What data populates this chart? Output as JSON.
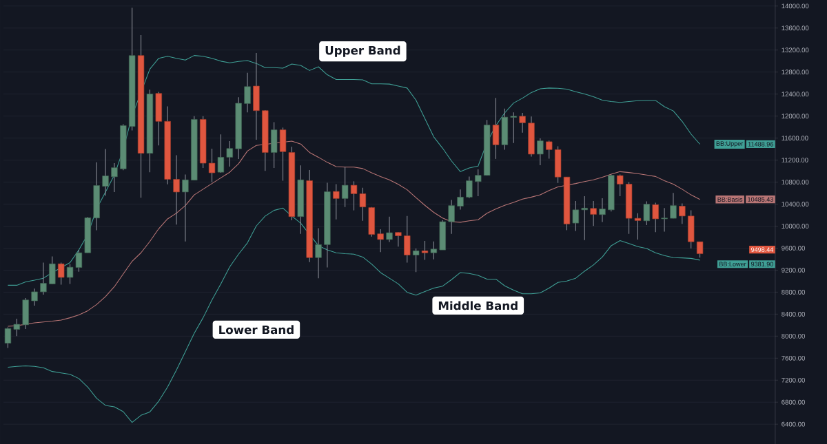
{
  "chart_data": {
    "type": "candlestick",
    "categories": [
      null,
      null,
      null,
      null,
      null,
      null,
      null,
      null,
      null,
      null,
      null,
      null,
      null,
      null,
      null,
      null,
      null,
      null,
      null,
      null,
      null,
      null,
      null,
      null,
      null,
      null,
      null,
      null,
      null,
      null,
      null,
      null,
      null,
      null,
      null,
      null,
      null,
      null,
      null,
      null,
      null,
      null,
      null,
      null,
      null,
      null,
      null,
      null,
      null,
      null,
      null,
      null,
      null,
      null,
      null,
      null,
      null,
      null,
      null,
      null,
      null,
      null,
      null,
      null,
      null,
      null,
      null,
      null,
      null,
      null,
      null,
      null,
      null,
      null,
      null,
      null,
      null,
      null,
      null
    ],
    "ohlc": [
      [
        7872,
        8160,
        7784,
        8139
      ],
      [
        8123,
        8318,
        8000,
        8216
      ],
      [
        8206,
        8693,
        8128,
        8658
      ],
      [
        8642,
        8863,
        8555,
        8806
      ],
      [
        8806,
        9336,
        8755,
        8961
      ],
      [
        8950,
        9449,
        8950,
        9315
      ],
      [
        9315,
        9336,
        8935,
        9068
      ],
      [
        9068,
        9310,
        8950,
        9253
      ],
      [
        9248,
        9567,
        9171,
        9515
      ],
      [
        9515,
        10167,
        9515,
        10152
      ],
      [
        10147,
        11159,
        9926,
        10738
      ],
      [
        10723,
        11401,
        10553,
        10913
      ],
      [
        10897,
        11144,
        10620,
        11062
      ],
      [
        11041,
        11853,
        11015,
        11827
      ],
      [
        11812,
        13969,
        11740,
        13101
      ],
      [
        13101,
        13471,
        10517,
        11324
      ],
      [
        11324,
        12479,
        10979,
        12402
      ],
      [
        12412,
        12438,
        11467,
        11904
      ],
      [
        11904,
        12176,
        10759,
        10851
      ],
      [
        10851,
        11288,
        10029,
        10620
      ],
      [
        10620,
        10938,
        9721,
        10841
      ],
      [
        10836,
        11997,
        10836,
        11940
      ],
      [
        11940,
        11997,
        11057,
        11144
      ],
      [
        11144,
        11406,
        10800,
        10969
      ],
      [
        10980,
        11668,
        10969,
        11252
      ],
      [
        11252,
        11544,
        11082,
        11411
      ],
      [
        11406,
        12341,
        11221,
        12233
      ],
      [
        12228,
        12788,
        12068,
        12536
      ],
      [
        12546,
        13147,
        11570,
        12099
      ],
      [
        12099,
        12109,
        11005,
        11339
      ],
      [
        11339,
        11889,
        11057,
        11750
      ],
      [
        11750,
        11791,
        10825,
        11354
      ],
      [
        11339,
        11442,
        10106,
        10173
      ],
      [
        10173,
        11103,
        9860,
        10841
      ],
      [
        10826,
        11021,
        9346,
        9428
      ],
      [
        9428,
        9962,
        9053,
        9664
      ],
      [
        9664,
        10789,
        9248,
        10625
      ],
      [
        10630,
        10764,
        10122,
        10502
      ],
      [
        10502,
        11072,
        10348,
        10743
      ],
      [
        10743,
        10815,
        10286,
        10589
      ],
      [
        10589,
        10697,
        10096,
        10348
      ],
      [
        10337,
        10348,
        9808,
        9849
      ],
      [
        9860,
        9942,
        9526,
        9757
      ],
      [
        9757,
        10173,
        9711,
        9880
      ],
      [
        9885,
        9890,
        9628,
        9824
      ],
      [
        9824,
        10183,
        9336,
        9474
      ],
      [
        9474,
        9592,
        9166,
        9551
      ],
      [
        9551,
        9731,
        9387,
        9515
      ],
      [
        9515,
        9721,
        9397,
        9582
      ],
      [
        9567,
        10106,
        9567,
        10080
      ],
      [
        10080,
        10476,
        9860,
        10373
      ],
      [
        10363,
        10666,
        10301,
        10527
      ],
      [
        10527,
        10902,
        10507,
        10825
      ],
      [
        10810,
        11031,
        10543,
        10923
      ],
      [
        10923,
        11930,
        10923,
        11837
      ],
      [
        11837,
        12330,
        11221,
        11478
      ],
      [
        11478,
        12135,
        11390,
        11981
      ],
      [
        11976,
        12068,
        11509,
        11997
      ],
      [
        11997,
        12058,
        11699,
        11878
      ],
      [
        11873,
        11991,
        11262,
        11308
      ],
      [
        11308,
        11596,
        11108,
        11550
      ],
      [
        11534,
        11555,
        11226,
        11390
      ],
      [
        11390,
        11452,
        10784,
        10892
      ],
      [
        10892,
        10892,
        9926,
        10039
      ],
      [
        10055,
        10455,
        9911,
        10296
      ],
      [
        10296,
        10543,
        9747,
        10327
      ],
      [
        10322,
        10455,
        10003,
        10214
      ],
      [
        10209,
        10507,
        10075,
        10312
      ],
      [
        10296,
        10938,
        10265,
        10923
      ],
      [
        10918,
        10938,
        10543,
        10764
      ],
      [
        10764,
        10800,
        9860,
        10142
      ],
      [
        10142,
        10235,
        9757,
        10101
      ],
      [
        10096,
        10450,
        10019,
        10399
      ],
      [
        10389,
        10425,
        9890,
        10132
      ],
      [
        10132,
        10327,
        9901,
        10147
      ],
      [
        10142,
        10604,
        10142,
        10373
      ],
      [
        10363,
        10414,
        10039,
        10183
      ],
      [
        10183,
        10286,
        9592,
        9716
      ],
      [
        9716,
        9716,
        9428,
        9498.44
      ]
    ],
    "colors": [
      "#5b8c74",
      "#5b8c74",
      "#5b8c74",
      "#5b8c74",
      "#5b8c74",
      "#5b8c74",
      "#e0563f",
      "#5b8c74",
      "#5b8c74",
      "#5b8c74",
      "#5b8c74",
      "#5b8c74",
      "#5b8c74",
      "#5b8c74",
      "#5b8c74",
      "#e0563f",
      "#5b8c74",
      "#e0563f",
      "#e0563f",
      "#e0563f",
      "#5b8c74",
      "#5b8c74",
      "#e0563f",
      "#e0563f",
      "#5b8c74",
      "#5b8c74",
      "#5b8c74",
      "#5b8c74",
      "#e0563f",
      "#e0563f",
      "#5b8c74",
      "#e0563f",
      "#e0563f",
      "#5b8c74",
      "#e0563f",
      "#5b8c74",
      "#5b8c74",
      "#e0563f",
      "#5b8c74",
      "#e0563f",
      "#e0563f",
      "#e0563f",
      "#e0563f",
      "#5b8c74",
      "#e0563f",
      "#e0563f",
      "#5b8c74",
      "#e0563f",
      "#5b8c74",
      "#5b8c74",
      "#5b8c74",
      "#5b8c74",
      "#5b8c74",
      "#5b8c74",
      "#5b8c74",
      "#e0563f",
      "#5b8c74",
      "#5b8c74",
      "#e0563f",
      "#e0563f",
      "#5b8c74",
      "#e0563f",
      "#e0563f",
      "#e0563f",
      "#5b8c74",
      "#5b8c74",
      "#e0563f",
      "#5b8c74",
      "#5b8c74",
      "#e0563f",
      "#e0563f",
      "#e0563f",
      "#5b8c74",
      "#e0563f",
      "#5b8c74",
      "#5b8c74",
      "#e0563f",
      "#e0563f",
      "#e0563f"
    ],
    "series": [
      {
        "name": "BB:Upper",
        "type": "line",
        "color": "#3f9f95",
        "values": [
          8925,
          8925,
          8986,
          9017,
          9053,
          9156,
          null,
          9336,
          9567,
          9849,
          10312,
          10620,
          10928,
          11390,
          12007,
          null,
          12854,
          13050,
          13086,
          13050,
          13019,
          13101,
          13086,
          13050,
          12998,
          12967,
          12993,
          13009,
          12957,
          12880,
          12880,
          12870,
          12947,
          12921,
          12829,
          12896,
          12752,
          12664,
          12664,
          12664,
          12659,
          12587,
          12587,
          12582,
          12546,
          12510,
          12289,
          11955,
          11622,
          11416,
          11185,
          10990,
          11057,
          11092,
          11519,
          11827,
          12058,
          12238,
          12325,
          12428,
          12495,
          12510,
          12505,
          12490,
          12443,
          12402,
          12351,
          12289,
          12264,
          12248,
          12264,
          12279,
          12284,
          12284,
          12171,
          12094,
          11904,
          11673,
          11488.96
        ]
      },
      {
        "name": "BB:Basis",
        "type": "line",
        "color": "#b87575",
        "values": [
          8180,
          8190,
          null,
          8241,
          8257,
          8272,
          8293,
          8334,
          8385,
          8462,
          8575,
          8719,
          8899,
          9130,
          9361,
          9515,
          9721,
          9952,
          10132,
          10235,
          10373,
          10568,
          10671,
          10774,
          10877,
          10979,
          11134,
          11365,
          11467,
          null,
          null,
          null,
          11544,
          11493,
          11339,
          11252,
          11159,
          11082,
          11072,
          11072,
          11046,
          10969,
          10902,
          10841,
          10759,
          10661,
          10517,
          10378,
          10250,
          10147,
          10080,
          10070,
          10096,
          10116,
          10235,
          10312,
          10378,
          10430,
          10491,
          10527,
          10568,
          10646,
          10712,
          null,
          10774,
          10810,
          10841,
          10887,
          10943,
          10990,
          10974,
          10954,
          10928,
          10902,
          10825,
          10764,
          10671,
          10568,
          10485.43
        ]
      },
      {
        "name": "BB:Lower",
        "type": "line",
        "color": "#3f9f95",
        "values": [
          7435,
          7450,
          7461,
          7450,
          7425,
          7358,
          7332,
          7307,
          7230,
          7075,
          6870,
          6741,
          6715,
          6628,
          6433,
          6561,
          6623,
          6818,
          7075,
          7384,
          7717,
          8051,
          8334,
          8658,
          8950,
          9258,
          9490,
          9695,
          10003,
          10183,
          10286,
          10327,
          10183,
          10055,
          null,
          9644,
          9567,
          9515,
          9500,
          9490,
          9438,
          9310,
          9156,
          9053,
          8950,
          8796,
          8745,
          8811,
          8873,
          8909,
          9027,
          9156,
          9140,
          9104,
          9037,
          9037,
          8914,
          8837,
          8770,
          8770,
          8786,
          8873,
          8976,
          9002,
          9053,
          9181,
          9294,
          9438,
          9644,
          9736,
          9685,
          9628,
          9592,
          9515,
          9464,
          9428,
          9423,
          9413,
          9381.9
        ]
      }
    ],
    "ylim": [
      6040,
      14110
    ],
    "yticks": [
      {
        "value": 6400,
        "label": "6400.00"
      },
      {
        "value": 6800,
        "label": "6800.00"
      },
      {
        "value": 7200,
        "label": "7200.00"
      },
      {
        "value": 7600,
        "label": "7600.00"
      },
      {
        "value": 8000,
        "label": "8000.00"
      },
      {
        "value": 8400,
        "label": "8400.00"
      },
      {
        "value": 8800,
        "label": "8800.00"
      },
      {
        "value": 9200,
        "label": "9200.00"
      },
      {
        "value": 9600,
        "label": "9600.00"
      },
      {
        "value": 10000,
        "label": "10000.00"
      },
      {
        "value": 10400,
        "label": "10400.00"
      },
      {
        "value": 10800,
        "label": "10800.00"
      },
      {
        "value": 11200,
        "label": "11200.00"
      },
      {
        "value": 11600,
        "label": "11600.00"
      },
      {
        "value": 12000,
        "label": "12000.00"
      },
      {
        "value": 12400,
        "label": "12400.00"
      },
      {
        "value": 12800,
        "label": "12800.00"
      },
      {
        "value": 13200,
        "label": "13200.00"
      },
      {
        "value": 13600,
        "label": "13600.00"
      },
      {
        "value": 14000,
        "label": "14000.00"
      }
    ],
    "grid": "y",
    "legend": "right",
    "tick_labels": "y",
    "annotations": [
      "Upper Band",
      "Middle Band",
      "Lower Band",
      "11488.96",
      "10485.43",
      "9381.90",
      "9498.44"
    ]
  }
}
